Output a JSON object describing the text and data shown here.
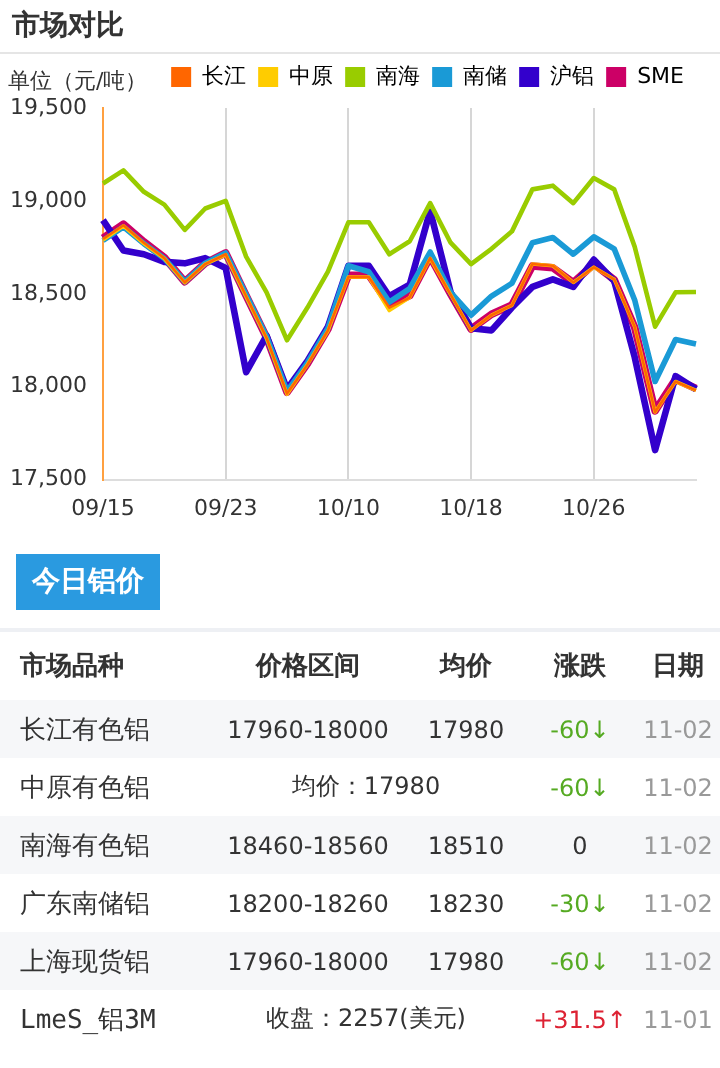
{
  "chart_data": [
    {
      "type": "line",
      "title": "市场对比",
      "ylabel": "单位（元/吨）",
      "categories": [
        "09/15",
        null,
        null,
        null,
        null,
        null,
        "09/23",
        null,
        null,
        null,
        null,
        null,
        "10/10",
        null,
        null,
        null,
        null,
        null,
        "10/18",
        null,
        null,
        null,
        null,
        null,
        "10/26",
        null,
        null,
        null,
        null,
        null
      ],
      "series": [
        {
          "name": "长江",
          "color": "#ff6600",
          "values": [
            18795,
            18869,
            18775,
            18692,
            18561,
            18660,
            18713,
            18487,
            18262,
            17963,
            18118,
            18303,
            18590,
            18590,
            18426,
            18480,
            18692,
            18496,
            18303,
            18385,
            18438,
            18660,
            18651,
            18561,
            18643,
            18578,
            18323,
            17864,
            18028,
            17980
          ]
        },
        {
          "name": "中原",
          "color": "#ffcc00",
          "values": [
            18790,
            18865,
            18770,
            18690,
            18560,
            18660,
            18710,
            18485,
            18260,
            17960,
            18120,
            18300,
            18590,
            18590,
            18410,
            18480,
            18690,
            18496,
            18303,
            18385,
            18438,
            18660,
            18651,
            18561,
            18643,
            18578,
            18323,
            17864,
            18028,
            17980
          ]
        },
        {
          "name": "南海",
          "color": "#99cc00",
          "values": [
            19094,
            19164,
            19049,
            18980,
            18844,
            18959,
            19000,
            18700,
            18508,
            18250,
            18426,
            18619,
            18885,
            18885,
            18713,
            18783,
            18988,
            18775,
            18660,
            18742,
            18836,
            19062,
            19082,
            18988,
            19123,
            19062,
            18754,
            18323,
            18508,
            18510
          ]
        },
        {
          "name": "南储",
          "color": "#1a9ad6",
          "values": [
            18787,
            18860,
            18770,
            18690,
            18565,
            18665,
            18720,
            18495,
            18270,
            17975,
            18130,
            18315,
            18651,
            18619,
            18455,
            18528,
            18725,
            18508,
            18385,
            18488,
            18557,
            18775,
            18803,
            18713,
            18807,
            18742,
            18467,
            18028,
            18254,
            18230
          ]
        },
        {
          "name": "沪铝",
          "color": "#3300cc",
          "values": [
            18897,
            18733,
            18713,
            18672,
            18664,
            18692,
            18639,
            18078,
            18275,
            17987,
            18139,
            18323,
            18651,
            18651,
            18487,
            18549,
            18947,
            18508,
            18315,
            18303,
            18426,
            18537,
            18578,
            18537,
            18684,
            18569,
            18160,
            17659,
            18057,
            17987
          ]
        },
        {
          "name": "SME",
          "color": "#cc0066",
          "values": [
            18800,
            18875,
            18780,
            18695,
            18565,
            18665,
            18720,
            18490,
            18265,
            17970,
            18125,
            18310,
            18600,
            18600,
            18440,
            18490,
            18700,
            18500,
            18310,
            18390,
            18440,
            18650,
            18640,
            18560,
            18660,
            18575,
            18320,
            17870,
            18040,
            17990
          ]
        }
      ],
      "ylim": [
        17500,
        19500
      ],
      "yticks": [
        {
          "value": 17500,
          "label": "17,500"
        },
        {
          "value": 18000,
          "label": "18,000"
        },
        {
          "value": 18500,
          "label": "18,500"
        },
        {
          "value": 19000,
          "label": "19,000"
        },
        {
          "value": 19500,
          "label": "19,500"
        }
      ],
      "grid": "x",
      "legend": "top right",
      "marker": "none",
      "line_style": "solid"
    },
    {
      "type": "other",
      "title": "今日铝价",
      "annotations": [
        "市场品种",
        "价格区间",
        "均价",
        "涨跌",
        "日期",
        "长江有色铝",
        "17960-18000",
        "17980",
        "-60↓",
        "11-02",
        "中原有色铝",
        "均价：17980",
        "-60↓",
        "11-02",
        "南海有色铝",
        "18460-18560",
        "18510",
        "0",
        "11-02",
        "广东南储铝",
        "18200-18260",
        "18230",
        "-30↓",
        "11-02",
        "上海现货铝",
        "17960-18000",
        "17980",
        "-60↓",
        "11-02",
        "LmeS_铝3M",
        "收盘：2257(美元)",
        "+31.5↑",
        "11-01"
      ]
    }
  ]
}
